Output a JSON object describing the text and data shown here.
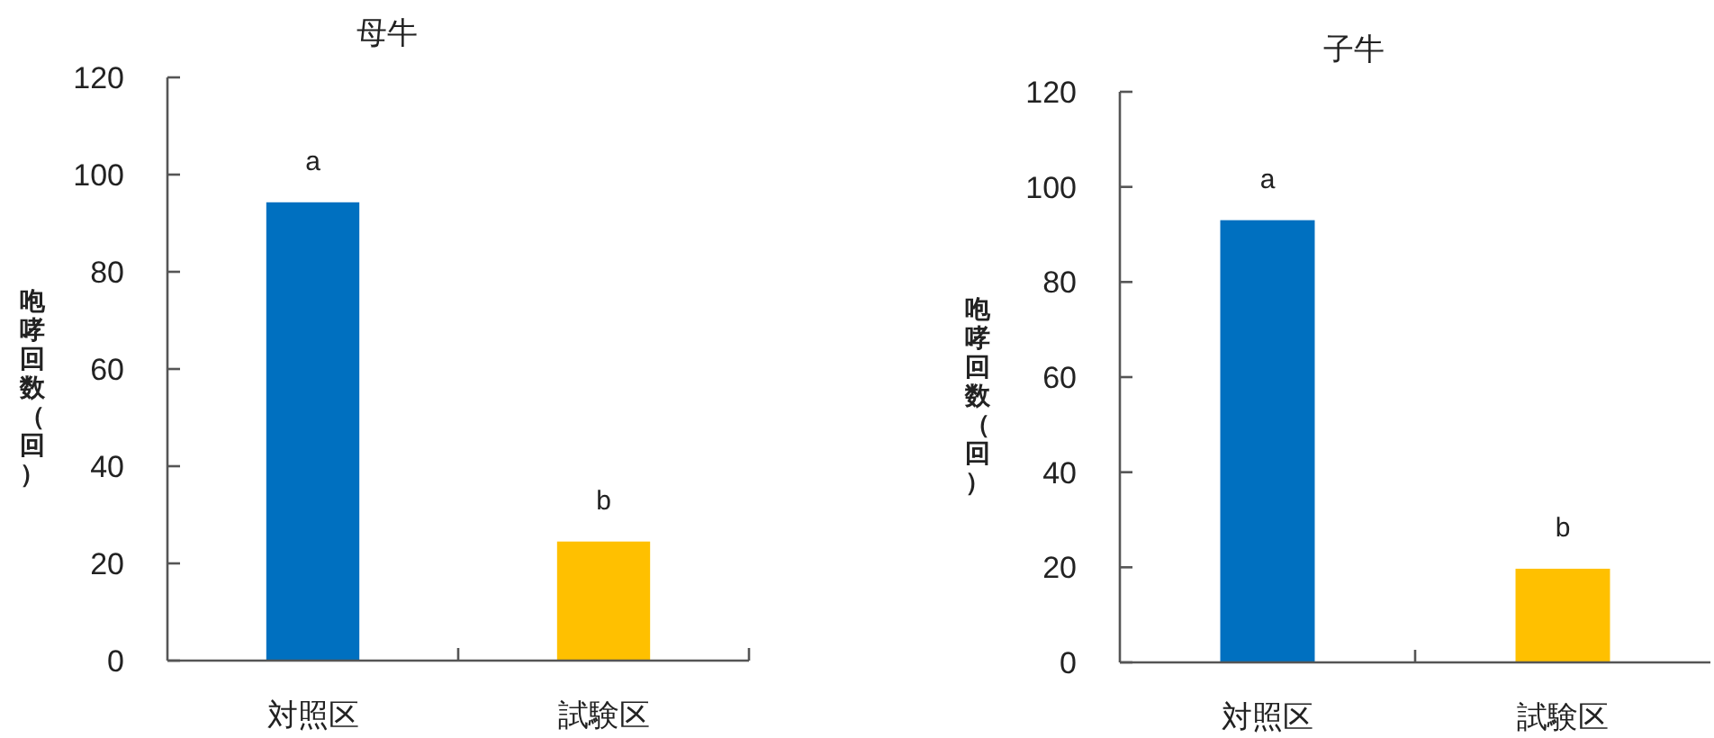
{
  "chart_data": [
    {
      "type": "bar",
      "title": "母牛",
      "ylabel": "咆哮回数（回）",
      "categories": [
        "対照区",
        "試験区"
      ],
      "values": [
        94.3,
        24.5
      ],
      "colors": [
        "#0070c0",
        "#ffc000"
      ],
      "ylim": [
        0,
        120
      ],
      "yticks": [
        0,
        20,
        40,
        60,
        80,
        100,
        120
      ],
      "grid": false,
      "annotations": [
        {
          "text": "a",
          "x": "対照区",
          "y": 94.3
        },
        {
          "text": "b",
          "x": "試験区",
          "y": 24.5
        }
      ]
    },
    {
      "type": "bar",
      "title": "子牛",
      "ylabel": "咆哮回数（回）",
      "categories": [
        "対照区",
        "試験区"
      ],
      "values": [
        93.0,
        19.7
      ],
      "colors": [
        "#0070c0",
        "#ffc000"
      ],
      "ylim": [
        0,
        120
      ],
      "yticks": [
        0,
        20,
        40,
        60,
        80,
        100,
        120
      ],
      "grid": false,
      "annotations": [
        {
          "text": "a",
          "x": "対照区",
          "y": 93.0
        },
        {
          "text": "b",
          "x": "試験区",
          "y": 19.7
        }
      ]
    }
  ]
}
